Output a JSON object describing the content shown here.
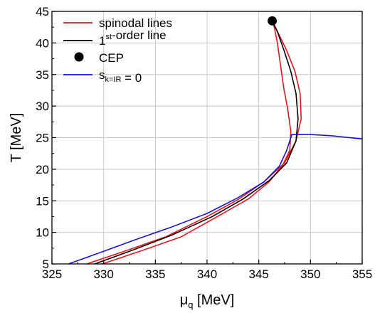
{
  "chart_data": {
    "type": "line",
    "title": "",
    "xlabel": {
      "main": "μ",
      "sub": "q",
      "unit": " [MeV]"
    },
    "ylabel": "T [MeV]",
    "xlim": [
      325,
      355
    ],
    "ylim": [
      5,
      45
    ],
    "xticks": [
      325,
      330,
      335,
      340,
      345,
      350,
      355
    ],
    "yticks": [
      5,
      10,
      15,
      20,
      25,
      30,
      35,
      40,
      45
    ],
    "grid": true,
    "legend_position": "top-left",
    "legend": [
      {
        "kind": "line",
        "color": "#e8141c",
        "parts": [
          {
            "t": "spinodal lines"
          }
        ]
      },
      {
        "kind": "line",
        "color": "#000000",
        "parts": [
          {
            "t": "1"
          },
          {
            "t": "st",
            "sup": true
          },
          {
            "t": "-order line"
          }
        ]
      },
      {
        "kind": "marker",
        "color": "#000000",
        "parts": [
          {
            "t": "CEP"
          }
        ]
      },
      {
        "kind": "line",
        "color": "#1414dc",
        "parts": [
          {
            "t": "s"
          },
          {
            "t": "k=IR",
            "sub": true
          },
          {
            "t": " = 0"
          }
        ]
      }
    ],
    "series": [
      {
        "color": "#e8141c",
        "points": [
          [
            328.0,
            4.8
          ],
          [
            332.0,
            7.0
          ],
          [
            336.0,
            9.3
          ],
          [
            340.0,
            12.5
          ],
          [
            343.0,
            15.2
          ],
          [
            345.5,
            18.0
          ],
          [
            347.5,
            21.0
          ],
          [
            348.6,
            24.5
          ],
          [
            349.1,
            28.0
          ],
          [
            349.0,
            32.0
          ],
          [
            348.5,
            35.5
          ],
          [
            347.7,
            38.8
          ],
          [
            346.9,
            41.5
          ],
          [
            346.3,
            43.5
          ]
        ]
      },
      {
        "color": "#e8141c",
        "points": [
          [
            329.5,
            4.8
          ],
          [
            333.5,
            7.0
          ],
          [
            337.5,
            9.3
          ],
          [
            341.0,
            12.5
          ],
          [
            344.0,
            15.3
          ],
          [
            346.0,
            18.0
          ],
          [
            347.3,
            20.6
          ],
          [
            348.0,
            23.0
          ],
          [
            348.1,
            26.0
          ],
          [
            347.8,
            29.5
          ],
          [
            347.4,
            33.0
          ],
          [
            347.1,
            36.5
          ],
          [
            346.8,
            40.0
          ],
          [
            346.5,
            42.5
          ],
          [
            346.3,
            43.5
          ]
        ]
      },
      {
        "color": "#000000",
        "points": [
          [
            328.8,
            4.8
          ],
          [
            332.5,
            7.0
          ],
          [
            336.5,
            9.5
          ],
          [
            340.5,
            12.5
          ],
          [
            343.5,
            15.3
          ],
          [
            346.0,
            18.2
          ],
          [
            347.7,
            21.0
          ],
          [
            348.6,
            24.5
          ],
          [
            348.8,
            28.0
          ],
          [
            348.6,
            32.0
          ],
          [
            348.1,
            35.5
          ],
          [
            347.4,
            39.0
          ],
          [
            346.8,
            41.8
          ],
          [
            346.3,
            43.5
          ]
        ]
      },
      {
        "color": "#1414dc",
        "points": [
          [
            326.6,
            5.0
          ],
          [
            330.0,
            7.0
          ],
          [
            333.0,
            8.8
          ],
          [
            336.5,
            10.8
          ],
          [
            340.0,
            13.0
          ],
          [
            343.0,
            15.5
          ],
          [
            345.5,
            18.0
          ],
          [
            347.0,
            20.5
          ],
          [
            347.7,
            23.0
          ],
          [
            348.2,
            25.5
          ],
          [
            350.0,
            25.5
          ],
          [
            352.0,
            25.3
          ],
          [
            355.0,
            24.8
          ]
        ]
      }
    ],
    "markers": [
      {
        "label": "CEP",
        "x": 346.3,
        "y": 43.5,
        "color": "#000000"
      }
    ]
  }
}
